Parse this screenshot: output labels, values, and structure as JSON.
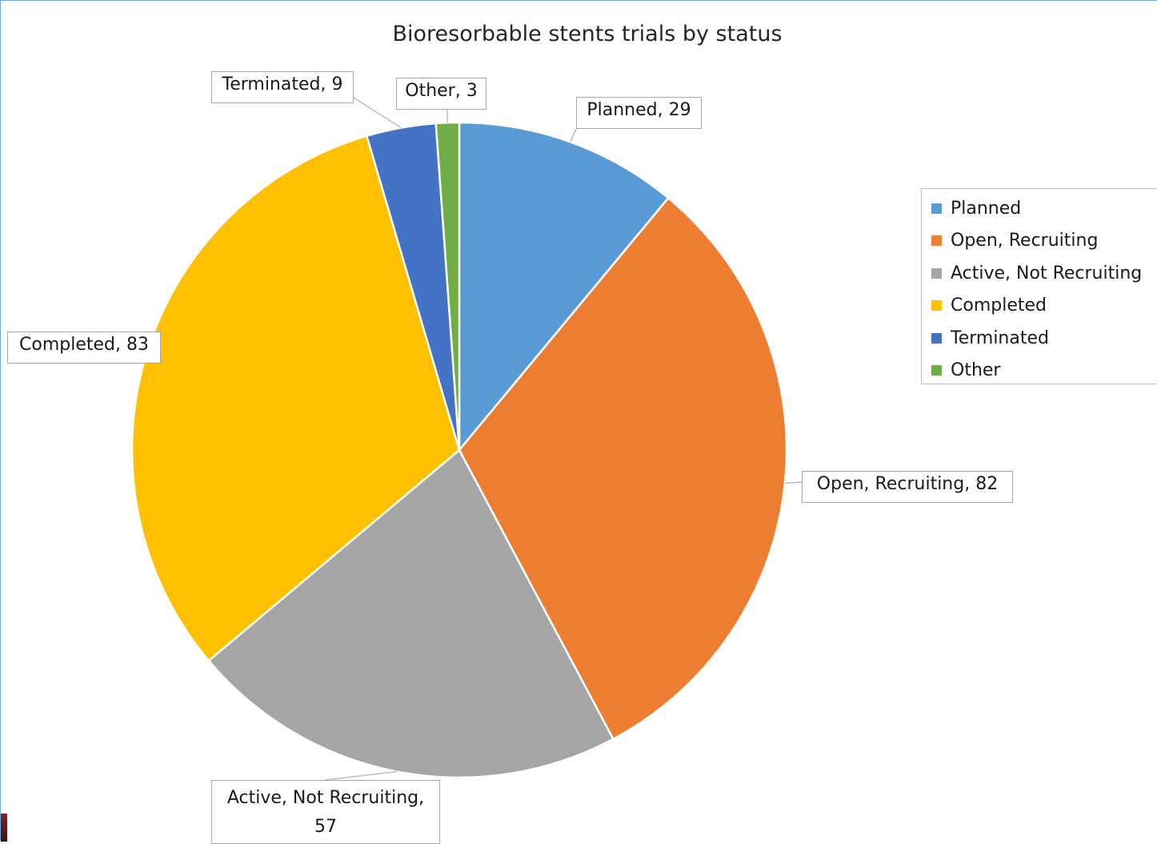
{
  "chart_data": {
    "type": "pie",
    "title": "Bioresorbable stents trials by status",
    "categories": [
      "Planned",
      "Open, Recruiting",
      "Active, Not Recruiting",
      "Completed",
      "Terminated",
      "Other"
    ],
    "values": [
      29,
      82,
      57,
      83,
      9,
      3
    ],
    "colors": [
      "#5b9bd5",
      "#ed7d31",
      "#a5a5a5",
      "#ffc000",
      "#4472c4",
      "#70ad47"
    ],
    "data_labels": [
      "Planned, 29",
      "Open, Recruiting, 82",
      "Active, Not Recruiting, 57",
      "Completed, 83",
      "Terminated, 9",
      "Other, 3"
    ],
    "legend_placement": "right",
    "start_angle": "12 o'clock, clockwise"
  }
}
